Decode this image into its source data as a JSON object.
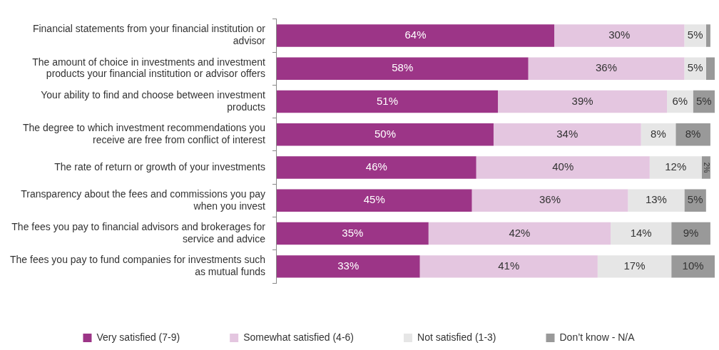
{
  "chart_data": {
    "type": "bar",
    "orientation": "horizontal",
    "stacked": true,
    "tick_labels": "y",
    "grid": false,
    "legend": "bottom",
    "categories": [
      "Financial statements from your financial institution or advisor",
      "The amount of choice in investments and investment products your financial institution or advisor offers",
      "Your ability to find and choose between investment products",
      "The degree to which investment recommendations you receive are free from conflict of interest",
      "The rate of return or growth of your investments",
      "Transparency about the fees and commissions you pay when you invest",
      "The fees you pay to financial advisors and brokerages for service and advice",
      "The fees you pay to fund companies for investments such as mutual funds"
    ],
    "series": [
      {
        "name": "Very satisfied (7-9)",
        "color": "#9c3587",
        "values": [
          64,
          58,
          51,
          50,
          46,
          45,
          35,
          33
        ],
        "value_labels": [
          "64%",
          "58%",
          "51%",
          "50%",
          "46%",
          "45%",
          "35%",
          "33%"
        ]
      },
      {
        "name": "Somewhat satisfied (4-6)",
        "color": "#e4c6e0",
        "values": [
          30,
          36,
          39,
          34,
          40,
          36,
          42,
          41
        ],
        "value_labels": [
          "30%",
          "36%",
          "39%",
          "34%",
          "40%",
          "36%",
          "42%",
          "41%"
        ]
      },
      {
        "name": "Not satisfied (1-3)",
        "color": "#e6e6e6",
        "values": [
          5,
          5,
          6,
          8,
          12,
          13,
          14,
          17
        ],
        "value_labels": [
          "5%",
          "5%",
          "6%",
          "8%",
          "12%",
          "13%",
          "14%",
          "17%"
        ]
      },
      {
        "name": "Don’t know - N/A",
        "color": "#999999",
        "values": [
          1,
          2,
          5,
          8,
          2,
          5,
          9,
          10
        ],
        "value_labels": [
          null,
          null,
          "5%",
          "8%",
          "2%",
          "5%",
          "9%",
          "10%"
        ]
      }
    ]
  }
}
